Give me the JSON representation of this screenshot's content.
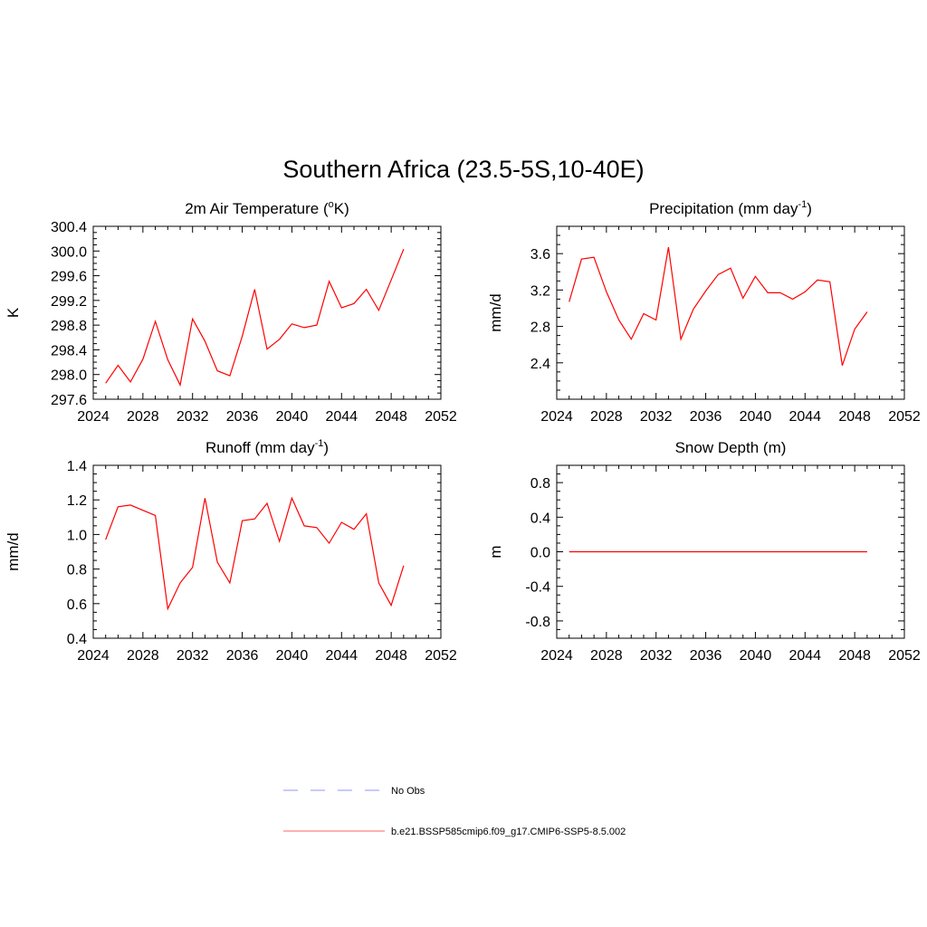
{
  "figure": {
    "title": "Southern Africa (23.5-5S,10-40E)"
  },
  "legend": {
    "entries": [
      {
        "label": "No Obs",
        "color": "#a9a9ff",
        "dash": true
      },
      {
        "label": "b.e21.BSSP585cmip6.f09_g17.CMIP6-SSP5-8.5.002",
        "color": "#ff8080",
        "dash": false
      }
    ]
  },
  "line_color": "#ff0000",
  "chart_data": [
    {
      "type": "line",
      "title": "2m Air Temperature (",
      "title_sup_prefix": "o",
      "title_after": "K)",
      "ylabel": "K",
      "xlim": [
        2024,
        2052
      ],
      "ylim": [
        297.6,
        300.4
      ],
      "xticks": [
        2024,
        2028,
        2032,
        2036,
        2040,
        2044,
        2048,
        2052
      ],
      "yticks": [
        297.6,
        298.0,
        298.4,
        298.8,
        299.2,
        299.6,
        300.0,
        300.4
      ],
      "ytick_decimals": 1,
      "x": [
        2025,
        2026,
        2027,
        2028,
        2029,
        2030,
        2031,
        2032,
        2033,
        2034,
        2035,
        2036,
        2037,
        2038,
        2039,
        2040,
        2041,
        2042,
        2043,
        2044,
        2045,
        2046,
        2047,
        2048,
        2049
      ],
      "series": [
        {
          "values": [
            297.86,
            298.15,
            297.88,
            298.25,
            298.86,
            298.24,
            297.83,
            298.9,
            298.54,
            298.06,
            297.98,
            298.62,
            299.38,
            298.41,
            298.57,
            298.82,
            298.76,
            298.8,
            299.51,
            299.08,
            299.15,
            299.38,
            299.04,
            299.53,
            300.03
          ]
        }
      ]
    },
    {
      "type": "line",
      "title": "Precipitation (mm day",
      "title_sup": "-1",
      "title_after": ")",
      "ylabel": "mm/d",
      "xlim": [
        2024,
        2052
      ],
      "ylim": [
        2.0,
        3.9
      ],
      "xticks": [
        2024,
        2028,
        2032,
        2036,
        2040,
        2044,
        2048,
        2052
      ],
      "yticks": [
        2.4,
        2.8,
        3.2,
        3.6
      ],
      "ytick_decimals": 1,
      "x": [
        2025,
        2026,
        2027,
        2028,
        2029,
        2030,
        2031,
        2032,
        2033,
        2034,
        2035,
        2036,
        2037,
        2038,
        2039,
        2040,
        2041,
        2042,
        2043,
        2044,
        2045,
        2046,
        2047,
        2048,
        2049
      ],
      "series": [
        {
          "values": [
            3.07,
            3.54,
            3.56,
            3.18,
            2.87,
            2.66,
            2.94,
            2.87,
            3.67,
            2.66,
            2.99,
            3.19,
            3.37,
            3.44,
            3.11,
            3.35,
            3.17,
            3.17,
            3.1,
            3.18,
            3.31,
            3.29,
            2.37,
            2.77,
            2.96
          ]
        }
      ]
    },
    {
      "type": "line",
      "title": "Runoff (mm day",
      "title_sup": "-1",
      "title_after": ")",
      "ylabel": "mm/d",
      "xlim": [
        2024,
        2052
      ],
      "ylim": [
        0.4,
        1.4
      ],
      "xticks": [
        2024,
        2028,
        2032,
        2036,
        2040,
        2044,
        2048,
        2052
      ],
      "yticks": [
        0.4,
        0.6,
        0.8,
        1.0,
        1.2,
        1.4
      ],
      "ytick_decimals": 1,
      "x": [
        2025,
        2026,
        2027,
        2028,
        2029,
        2030,
        2031,
        2032,
        2033,
        2034,
        2035,
        2036,
        2037,
        2038,
        2039,
        2040,
        2041,
        2042,
        2043,
        2044,
        2045,
        2046,
        2047,
        2048,
        2049
      ],
      "series": [
        {
          "values": [
            0.97,
            1.16,
            1.17,
            1.14,
            1.11,
            0.57,
            0.72,
            0.81,
            1.21,
            0.84,
            0.72,
            1.08,
            1.09,
            1.18,
            0.96,
            1.21,
            1.05,
            1.04,
            0.95,
            1.07,
            1.03,
            1.12,
            0.72,
            0.59,
            0.82
          ]
        }
      ]
    },
    {
      "type": "line",
      "title": "Snow Depth (m)",
      "ylabel": "m",
      "xlim": [
        2024,
        2052
      ],
      "ylim": [
        -1.0,
        1.0
      ],
      "xticks": [
        2024,
        2028,
        2032,
        2036,
        2040,
        2044,
        2048,
        2052
      ],
      "yticks": [
        -0.8,
        -0.4,
        0.0,
        0.4,
        0.8
      ],
      "ytick_decimals": 1,
      "x": [
        2025,
        2026,
        2027,
        2028,
        2029,
        2030,
        2031,
        2032,
        2033,
        2034,
        2035,
        2036,
        2037,
        2038,
        2039,
        2040,
        2041,
        2042,
        2043,
        2044,
        2045,
        2046,
        2047,
        2048,
        2049
      ],
      "series": [
        {
          "values": [
            0,
            0,
            0,
            0,
            0,
            0,
            0,
            0,
            0,
            0,
            0,
            0,
            0,
            0,
            0,
            0,
            0,
            0,
            0,
            0,
            0,
            0,
            0,
            0,
            0
          ]
        }
      ]
    }
  ]
}
